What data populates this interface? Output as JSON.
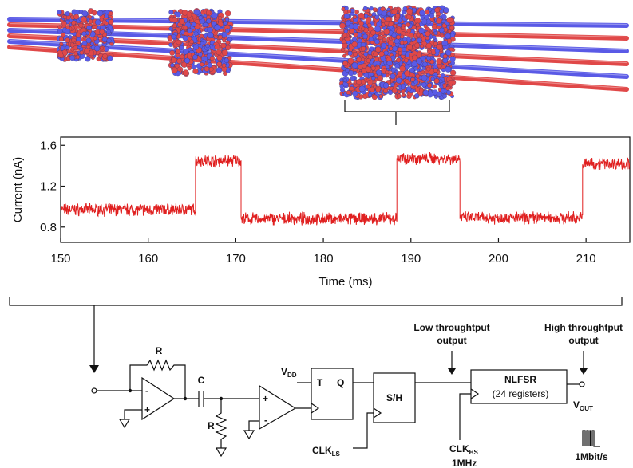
{
  "colors": {
    "trace": "#e02020",
    "nanopore_red": "#e04848",
    "nanopore_blue": "#5a5ae6",
    "ink": "#111111"
  },
  "chart_data": {
    "type": "line",
    "xlabel": "Time (ms)",
    "ylabel": "Current (nA)",
    "xlim": [
      150,
      215
    ],
    "ylim": [
      0.65,
      1.68
    ],
    "xticks": [
      "150",
      "160",
      "170",
      "180",
      "190",
      "200",
      "210"
    ],
    "yticks": [
      "0.8",
      "1.2",
      "1.6"
    ],
    "grid": false,
    "series": [
      {
        "levels": [
          {
            "x_start": 150.0,
            "x_end": 165.4,
            "y": 0.97
          },
          {
            "x_start": 165.4,
            "x_end": 170.6,
            "y": 1.45
          },
          {
            "x_start": 170.6,
            "x_end": 188.4,
            "y": 0.88
          },
          {
            "x_start": 188.4,
            "x_end": 195.6,
            "y": 1.47
          },
          {
            "x_start": 195.6,
            "x_end": 209.6,
            "y": 0.89
          },
          {
            "x_start": 209.6,
            "x_end": 215.0,
            "y": 1.42
          }
        ]
      }
    ]
  },
  "circuit": {
    "resistor_feedback": "R",
    "capacitor": "C",
    "resistor_shunt": "R",
    "opamp1_minus": "-",
    "opamp1_plus": "+",
    "opamp2_plus": "+",
    "opamp2_minus": "-",
    "vdd": "V",
    "vdd_sub": "DD",
    "flipflop_t": "T",
    "flipflop_q": "Q",
    "sample_hold": "S/H",
    "clk_ls": "CLK",
    "clk_ls_sub": "LS",
    "low_out_line1": "Low throughtput",
    "low_out_line2": "output",
    "high_out_line1": "High throughtput",
    "high_out_line2": "output",
    "nlfsr_title": "NLFSR",
    "nlfsr_sub": "(24 registers)",
    "vout": "V",
    "vout_sub": "OUT",
    "clk_hs": "CLK",
    "clk_hs_sub": "HS",
    "clk_hs_freq": "1MHz",
    "bitrate": "1Mbit/s"
  }
}
